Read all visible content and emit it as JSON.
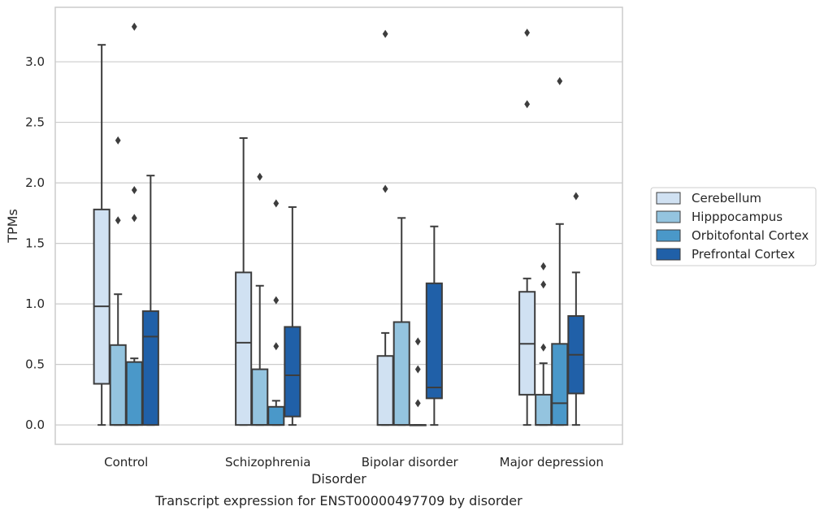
{
  "chart_data": {
    "type": "boxplot",
    "title": "Transcript expression for ENST00000497709 by disorder",
    "xlabel": "Disorder",
    "ylabel": "TPMs",
    "ylim": [
      -0.16,
      3.45
    ],
    "yticks": [
      "0.0",
      "0.5",
      "1.0",
      "1.5",
      "2.0",
      "2.5",
      "3.0"
    ],
    "grid": "horizontal",
    "legend_position": "right",
    "categories": [
      "Control",
      "Schizophrenia",
      "Bipolar disorder",
      "Major depression"
    ],
    "series": [
      {
        "name": "Cerebellum",
        "color": "#d0e1f2",
        "boxes": [
          {
            "whislo": 0.0,
            "q1": 0.34,
            "med": 0.98,
            "q3": 1.78,
            "whishi": 3.14,
            "fliers": []
          },
          {
            "whislo": 0.0,
            "q1": 0.0,
            "med": 0.68,
            "q3": 1.26,
            "whishi": 2.37,
            "fliers": []
          },
          {
            "whislo": 0.0,
            "q1": 0.0,
            "med": 0.0,
            "q3": 0.57,
            "whishi": 0.76,
            "fliers": [
              1.95,
              3.23
            ]
          },
          {
            "whislo": 0.0,
            "q1": 0.25,
            "med": 0.67,
            "q3": 1.1,
            "whishi": 1.21,
            "fliers": [
              2.65,
              3.24
            ]
          }
        ]
      },
      {
        "name": "Hipppocampus",
        "color": "#94c4df",
        "boxes": [
          {
            "whislo": 0.0,
            "q1": 0.0,
            "med": 0.0,
            "q3": 0.66,
            "whishi": 1.08,
            "fliers": [
              1.69,
              2.35
            ]
          },
          {
            "whislo": 0.0,
            "q1": 0.0,
            "med": 0.0,
            "q3": 0.46,
            "whishi": 1.15,
            "fliers": [
              2.05
            ]
          },
          {
            "whislo": 0.0,
            "q1": 0.0,
            "med": 0.0,
            "q3": 0.85,
            "whishi": 1.71,
            "fliers": []
          },
          {
            "whislo": 0.0,
            "q1": 0.0,
            "med": 0.0,
            "q3": 0.25,
            "whishi": 0.51,
            "fliers": [
              0.64,
              1.16,
              1.31
            ]
          }
        ]
      },
      {
        "name": "Orbitofontal Cortex",
        "color": "#4a98c9",
        "boxes": [
          {
            "whislo": 0.0,
            "q1": 0.0,
            "med": 0.0,
            "q3": 0.52,
            "whishi": 0.55,
            "fliers": [
              1.71,
              1.94,
              3.29
            ]
          },
          {
            "whislo": 0.0,
            "q1": 0.0,
            "med": 0.0,
            "q3": 0.15,
            "whishi": 0.2,
            "fliers": [
              0.65,
              1.03,
              1.83
            ]
          },
          {
            "whislo": 0.0,
            "q1": 0.0,
            "med": 0.0,
            "q3": 0.0,
            "whishi": 0.0,
            "fliers": [
              0.18,
              0.46,
              0.69
            ]
          },
          {
            "whislo": 0.0,
            "q1": 0.0,
            "med": 0.18,
            "q3": 0.67,
            "whishi": 1.66,
            "fliers": [
              2.84
            ]
          }
        ]
      },
      {
        "name": "Prefrontal Cortex",
        "color": "#2060a8",
        "boxes": [
          {
            "whislo": 0.0,
            "q1": 0.0,
            "med": 0.73,
            "q3": 0.94,
            "whishi": 2.06,
            "fliers": []
          },
          {
            "whislo": 0.0,
            "q1": 0.07,
            "med": 0.41,
            "q3": 0.81,
            "whishi": 1.8,
            "fliers": []
          },
          {
            "whislo": 0.0,
            "q1": 0.22,
            "med": 0.31,
            "q3": 1.17,
            "whishi": 1.64,
            "fliers": []
          },
          {
            "whislo": 0.0,
            "q1": 0.26,
            "med": 0.58,
            "q3": 0.9,
            "whishi": 1.26,
            "fliers": [
              1.89
            ]
          }
        ]
      }
    ]
  }
}
